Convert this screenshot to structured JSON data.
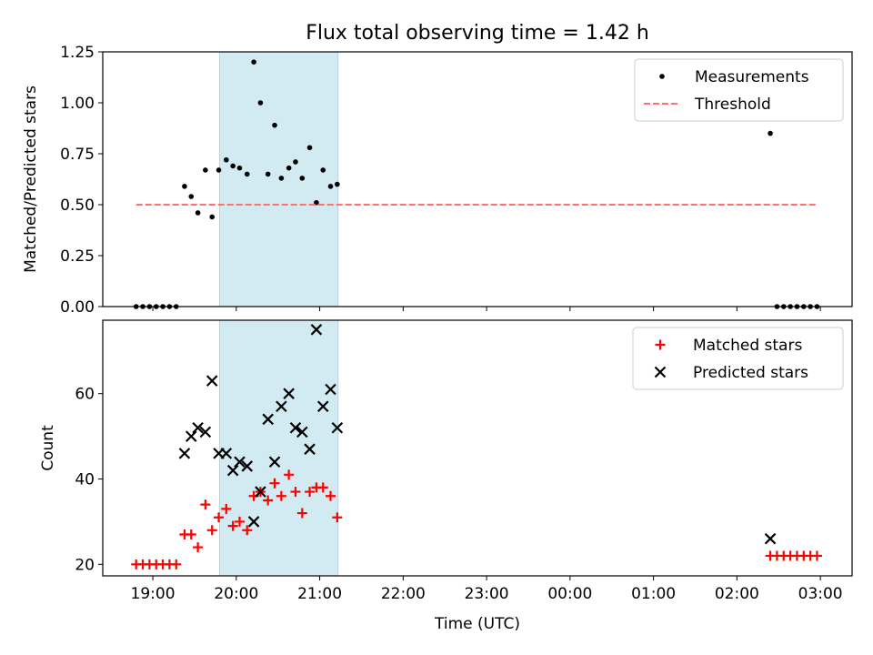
{
  "chart_data": {
    "title": "Flux total observing time = 1.42 h",
    "xlabel": "Time (UTC)",
    "x_unit": "hours UTC",
    "x_ticks": [
      {
        "value": 19,
        "label": "19:00"
      },
      {
        "value": 20,
        "label": "20:00"
      },
      {
        "value": 21,
        "label": "21:00"
      },
      {
        "value": 22,
        "label": "22:00"
      },
      {
        "value": 23,
        "label": "23:00"
      },
      {
        "value": 24,
        "label": "00:00"
      },
      {
        "value": 25,
        "label": "01:00"
      },
      {
        "value": 26,
        "label": "02:00"
      },
      {
        "value": 27,
        "label": "03:00"
      }
    ],
    "xlim": [
      18.4,
      27.38
    ],
    "shaded_span": {
      "x0": 19.8,
      "x1": 21.22,
      "color": "#add8e6"
    },
    "panels": [
      {
        "type": "scatter",
        "ylabel": "Matched/Predicted stars",
        "ylim": [
          0,
          1.25
        ],
        "y_ticks": [
          {
            "value": 0,
            "label": "0.00"
          },
          {
            "value": 0.25,
            "label": "0.25"
          },
          {
            "value": 0.5,
            "label": "0.50"
          },
          {
            "value": 0.75,
            "label": "0.75"
          },
          {
            "value": 1.0,
            "label": "1.00"
          },
          {
            "value": 1.25,
            "label": "1.25"
          }
        ],
        "legend_position": "top-right",
        "series": [
          {
            "name": "Measurements",
            "type": "scatter",
            "marker": "dot",
            "color": "#000000",
            "points": [
              [
                18.8,
                0
              ],
              [
                18.88,
                0
              ],
              [
                18.96,
                0
              ],
              [
                19.04,
                0
              ],
              [
                19.12,
                0
              ],
              [
                19.2,
                0
              ],
              [
                19.28,
                0
              ],
              [
                19.38,
                0.59
              ],
              [
                19.46,
                0.54
              ],
              [
                19.54,
                0.46
              ],
              [
                19.63,
                0.67
              ],
              [
                19.71,
                0.44
              ],
              [
                19.79,
                0.67
              ],
              [
                19.88,
                0.72
              ],
              [
                19.96,
                0.69
              ],
              [
                20.04,
                0.68
              ],
              [
                20.13,
                0.65
              ],
              [
                20.21,
                1.2
              ],
              [
                20.29,
                1.0
              ],
              [
                20.38,
                0.65
              ],
              [
                20.46,
                0.89
              ],
              [
                20.54,
                0.63
              ],
              [
                20.63,
                0.68
              ],
              [
                20.71,
                0.71
              ],
              [
                20.79,
                0.63
              ],
              [
                20.88,
                0.78
              ],
              [
                20.96,
                0.51
              ],
              [
                21.04,
                0.67
              ],
              [
                21.13,
                0.59
              ],
              [
                21.21,
                0.6
              ],
              [
                26.4,
                0.85
              ],
              [
                26.48,
                0
              ],
              [
                26.56,
                0
              ],
              [
                26.64,
                0
              ],
              [
                26.72,
                0
              ],
              [
                26.8,
                0
              ],
              [
                26.88,
                0
              ],
              [
                26.96,
                0
              ]
            ]
          },
          {
            "name": "Threshold",
            "type": "line",
            "style": "dashed",
            "color": "#ff7070",
            "points": [
              [
                18.8,
                0.5
              ],
              [
                26.96,
                0.5
              ]
            ]
          }
        ]
      },
      {
        "type": "scatter",
        "ylabel": "Count",
        "ylim": [
          17.3,
          77.2
        ],
        "y_ticks": [
          {
            "value": 20,
            "label": "20"
          },
          {
            "value": 40,
            "label": "40"
          },
          {
            "value": 60,
            "label": "60"
          }
        ],
        "legend_position": "top-right",
        "series": [
          {
            "name": "Matched stars",
            "type": "scatter",
            "marker": "plus",
            "color": "#ff0000",
            "points": [
              [
                18.8,
                20
              ],
              [
                18.88,
                20
              ],
              [
                18.96,
                20
              ],
              [
                19.04,
                20
              ],
              [
                19.12,
                20
              ],
              [
                19.2,
                20
              ],
              [
                19.28,
                20
              ],
              [
                19.38,
                27
              ],
              [
                19.46,
                27
              ],
              [
                19.54,
                24
              ],
              [
                19.63,
                34
              ],
              [
                19.71,
                28
              ],
              [
                19.79,
                31
              ],
              [
                19.88,
                33
              ],
              [
                19.96,
                29
              ],
              [
                20.04,
                30
              ],
              [
                20.13,
                28
              ],
              [
                20.21,
                36
              ],
              [
                20.29,
                37
              ],
              [
                20.38,
                35
              ],
              [
                20.46,
                39
              ],
              [
                20.54,
                36
              ],
              [
                20.63,
                41
              ],
              [
                20.71,
                37
              ],
              [
                20.79,
                32
              ],
              [
                20.88,
                37
              ],
              [
                20.96,
                38
              ],
              [
                21.04,
                38
              ],
              [
                21.13,
                36
              ],
              [
                21.21,
                31
              ],
              [
                26.4,
                22
              ],
              [
                26.48,
                22
              ],
              [
                26.56,
                22
              ],
              [
                26.64,
                22
              ],
              [
                26.72,
                22
              ],
              [
                26.8,
                22
              ],
              [
                26.88,
                22
              ],
              [
                26.96,
                22
              ]
            ]
          },
          {
            "name": "Predicted stars",
            "type": "scatter",
            "marker": "x",
            "color": "#000000",
            "points": [
              [
                19.38,
                46
              ],
              [
                19.46,
                50
              ],
              [
                19.54,
                52
              ],
              [
                19.63,
                51
              ],
              [
                19.71,
                63
              ],
              [
                19.79,
                46
              ],
              [
                19.88,
                46
              ],
              [
                19.96,
                42
              ],
              [
                20.04,
                44
              ],
              [
                20.13,
                43
              ],
              [
                20.21,
                30
              ],
              [
                20.29,
                37
              ],
              [
                20.38,
                54
              ],
              [
                20.46,
                44
              ],
              [
                20.54,
                57
              ],
              [
                20.63,
                60
              ],
              [
                20.71,
                52
              ],
              [
                20.79,
                51
              ],
              [
                20.88,
                47
              ],
              [
                20.96,
                75
              ],
              [
                21.04,
                57
              ],
              [
                21.13,
                61
              ],
              [
                21.21,
                52
              ],
              [
                26.4,
                26
              ]
            ]
          }
        ]
      }
    ]
  }
}
